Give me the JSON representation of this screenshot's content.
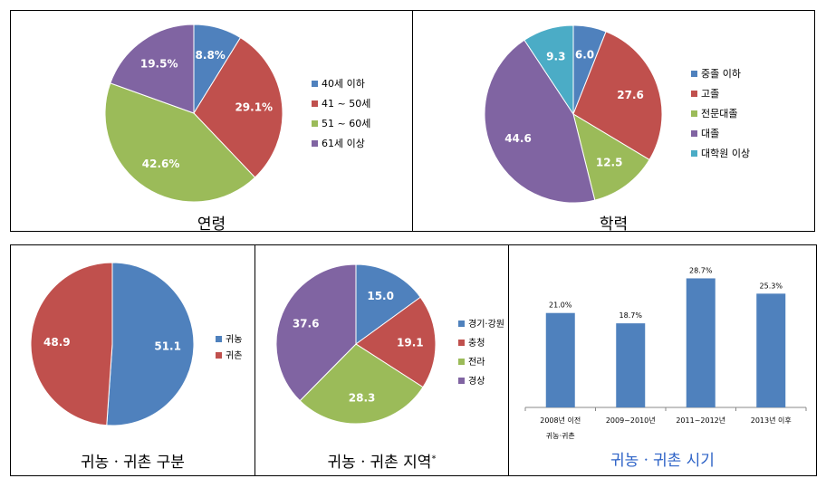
{
  "chart_data": [
    {
      "type": "pie",
      "caption": "연령",
      "categories": [
        "40세 이하",
        "41 ~ 50세",
        "51 ~ 60세",
        "61세 이상"
      ],
      "values": [
        8.8,
        29.1,
        42.6,
        19.5
      ],
      "value_labels": [
        "8.8%",
        "29.1%",
        "42.6%",
        "19.5%"
      ],
      "colors": [
        "#4f81bd",
        "#c0504d",
        "#9bbb59",
        "#8064a2"
      ],
      "legend_position": "right"
    },
    {
      "type": "pie",
      "caption": "학력",
      "categories": [
        "중졸 이하",
        "고졸",
        "전문대졸",
        "대졸",
        "대학원 이상"
      ],
      "values": [
        6.0,
        27.6,
        12.5,
        44.6,
        9.3
      ],
      "value_labels": [
        "6.0",
        "27.6",
        "12.5",
        "44.6",
        "9.3"
      ],
      "colors": [
        "#4f81bd",
        "#c0504d",
        "#9bbb59",
        "#8064a2",
        "#4bacc6"
      ],
      "legend_position": "right"
    },
    {
      "type": "pie",
      "caption": "귀농ㆍ귀촌 구분",
      "categories": [
        "귀농",
        "귀촌"
      ],
      "values": [
        51.1,
        48.9
      ],
      "value_labels": [
        "51.1",
        "48.9"
      ],
      "colors": [
        "#4f81bd",
        "#c0504d"
      ],
      "legend_position": "right"
    },
    {
      "type": "pie",
      "caption": "귀농ㆍ귀촌 지역",
      "caption_mark": "*",
      "categories": [
        "경기·강원",
        "충청",
        "전라",
        "경상"
      ],
      "values": [
        15.0,
        19.1,
        28.3,
        37.6
      ],
      "value_labels": [
        "15.0",
        "19.1",
        "28.3",
        "37.6"
      ],
      "colors": [
        "#4f81bd",
        "#c0504d",
        "#9bbb59",
        "#8064a2"
      ],
      "legend_position": "right"
    },
    {
      "type": "bar",
      "caption": "귀농ㆍ귀촌 시기",
      "categories": [
        "2008년 이전\n귀농·귀촌",
        "2009~2010년",
        "2011~2012년",
        "2013년 이후"
      ],
      "values": [
        21.0,
        18.7,
        28.7,
        25.3
      ],
      "value_labels": [
        "21.0%",
        "18.7%",
        "28.7%",
        "25.3%"
      ],
      "ylim": [
        0,
        30
      ],
      "colors": [
        "#4f81bd"
      ],
      "grid": false
    }
  ]
}
